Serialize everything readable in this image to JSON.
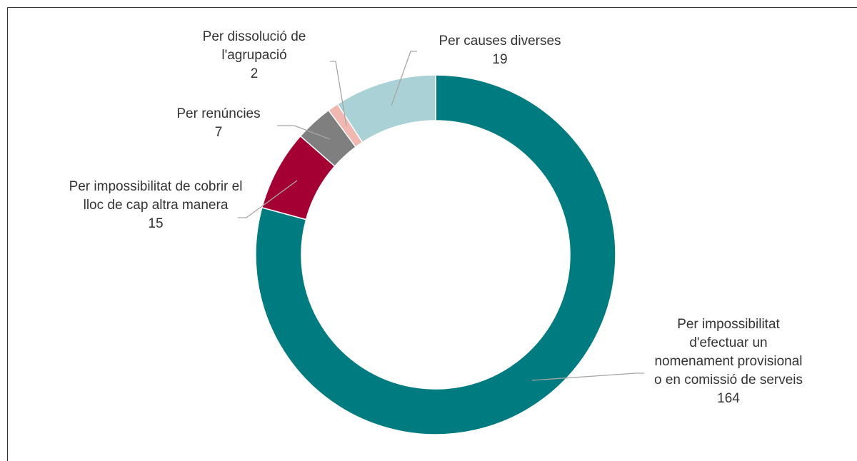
{
  "chart_data": {
    "type": "donut",
    "categories": [
      "Per impossibilitat d'efectuar un nomenament provisional o en comissió de serveis",
      "Per impossibilitat de cobrir el lloc de cap altra manera",
      "Per renúncies",
      "Per dissolució de l'agrupació",
      "Per causes diverses"
    ],
    "values": [
      164,
      15,
      7,
      2,
      19
    ],
    "colors": [
      "#007b80",
      "#a50034",
      "#7f7f7f",
      "#f0b8b0",
      "#a9d1d6"
    ]
  }
}
